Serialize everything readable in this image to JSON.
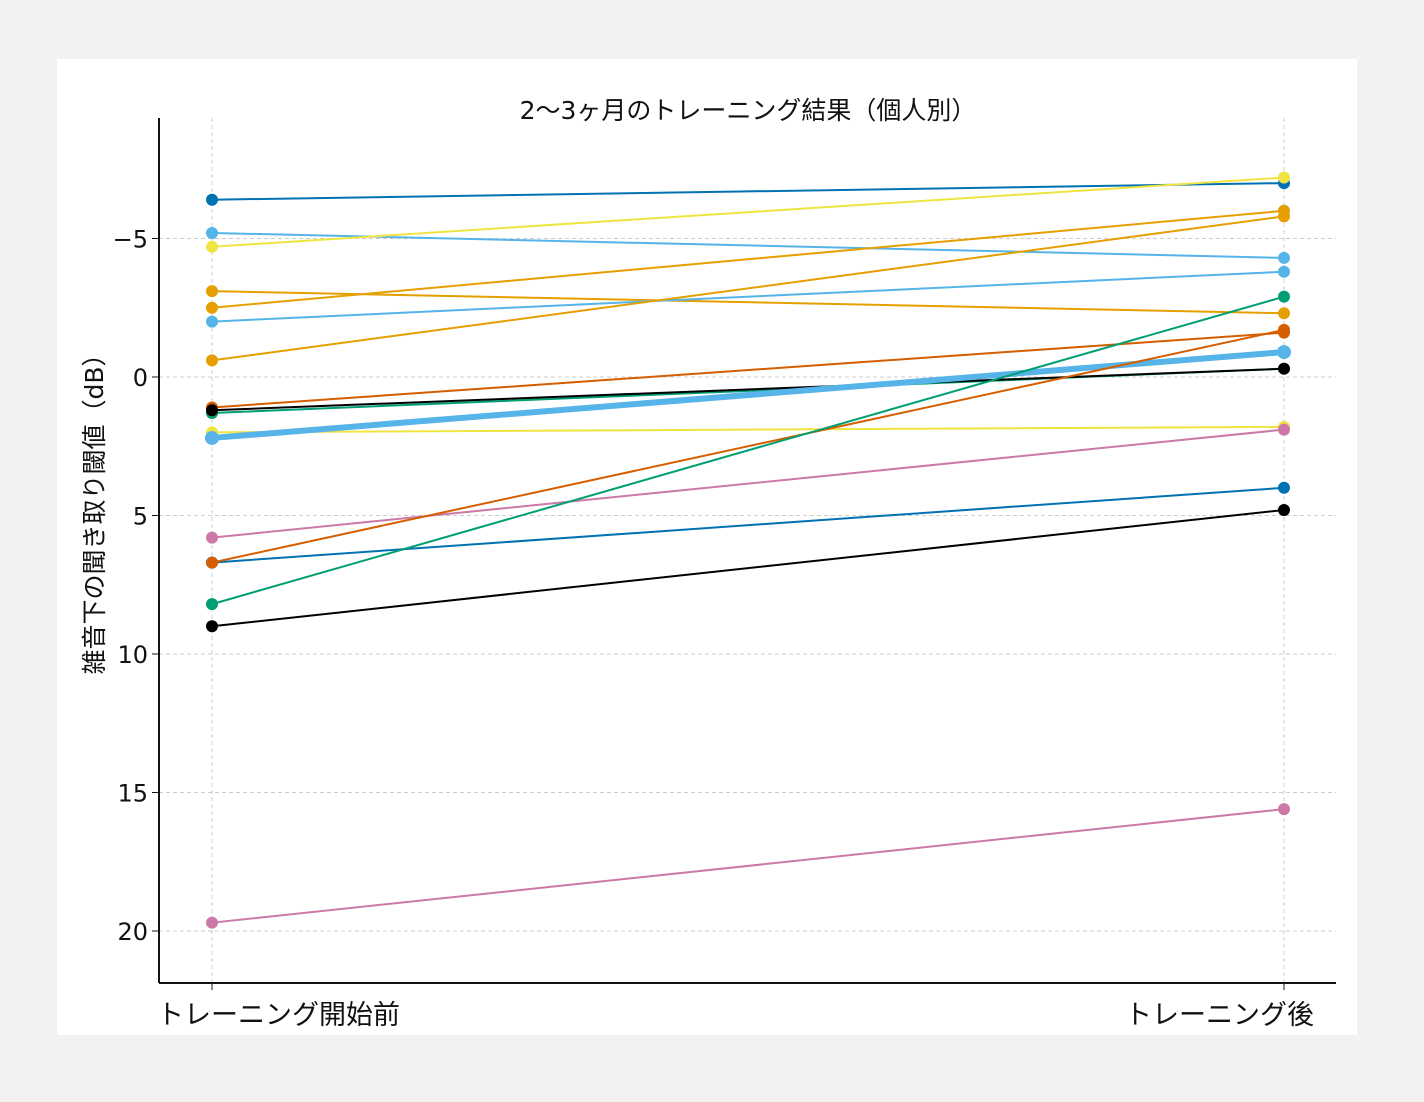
{
  "chart_data": {
    "type": "line",
    "title": "2〜3ヶ月のトレーニング結果（個人別）",
    "xlabel": "",
    "ylabel": "雑音下の聞き取り閾値（dB）",
    "categories": [
      "トレーニング開始前",
      "トレーニング後"
    ],
    "ylim": [
      21.9,
      -9.3
    ],
    "y_inverted": true,
    "yticks": [
      -5,
      0,
      5,
      10,
      15,
      20
    ],
    "ytick_labels": [
      "−5",
      "0",
      "5",
      "10",
      "15",
      "20"
    ],
    "grid": true,
    "series": [
      {
        "values": [
          -6.4,
          -7.0
        ],
        "color": "#0072B2"
      },
      {
        "values": [
          -5.2,
          -4.3
        ],
        "color": "#56B4E9"
      },
      {
        "values": [
          -4.7,
          -7.2
        ],
        "color": "#F0E442"
      },
      {
        "values": [
          -3.1,
          -2.3
        ],
        "color": "#E69F00"
      },
      {
        "values": [
          -2.5,
          -6.0
        ],
        "color": "#E69F00"
      },
      {
        "values": [
          -2.0,
          -3.8
        ],
        "color": "#56B4E9"
      },
      {
        "values": [
          -0.6,
          -5.8
        ],
        "color": "#E69F00"
      },
      {
        "values": [
          1.1,
          -1.6
        ],
        "color": "#D55E00"
      },
      {
        "values": [
          1.3,
          -0.3
        ],
        "color": "#009E73"
      },
      {
        "values": [
          1.2,
          -0.3
        ],
        "color": "#000000"
      },
      {
        "values": [
          2.0,
          1.8
        ],
        "color": "#F0E442"
      },
      {
        "values": [
          2.2,
          -0.9
        ],
        "color": "#56B4E9",
        "emphasis": true
      },
      {
        "values": [
          5.8,
          1.9
        ],
        "color": "#CC79A7"
      },
      {
        "values": [
          6.7,
          4.0
        ],
        "color": "#0072B2"
      },
      {
        "values": [
          6.7,
          -1.7
        ],
        "color": "#D55E00"
      },
      {
        "values": [
          8.2,
          -2.9
        ],
        "color": "#009E73"
      },
      {
        "values": [
          9.0,
          4.8
        ],
        "color": "#000000"
      },
      {
        "values": [
          19.7,
          15.6
        ],
        "color": "#CC79A7"
      }
    ]
  }
}
